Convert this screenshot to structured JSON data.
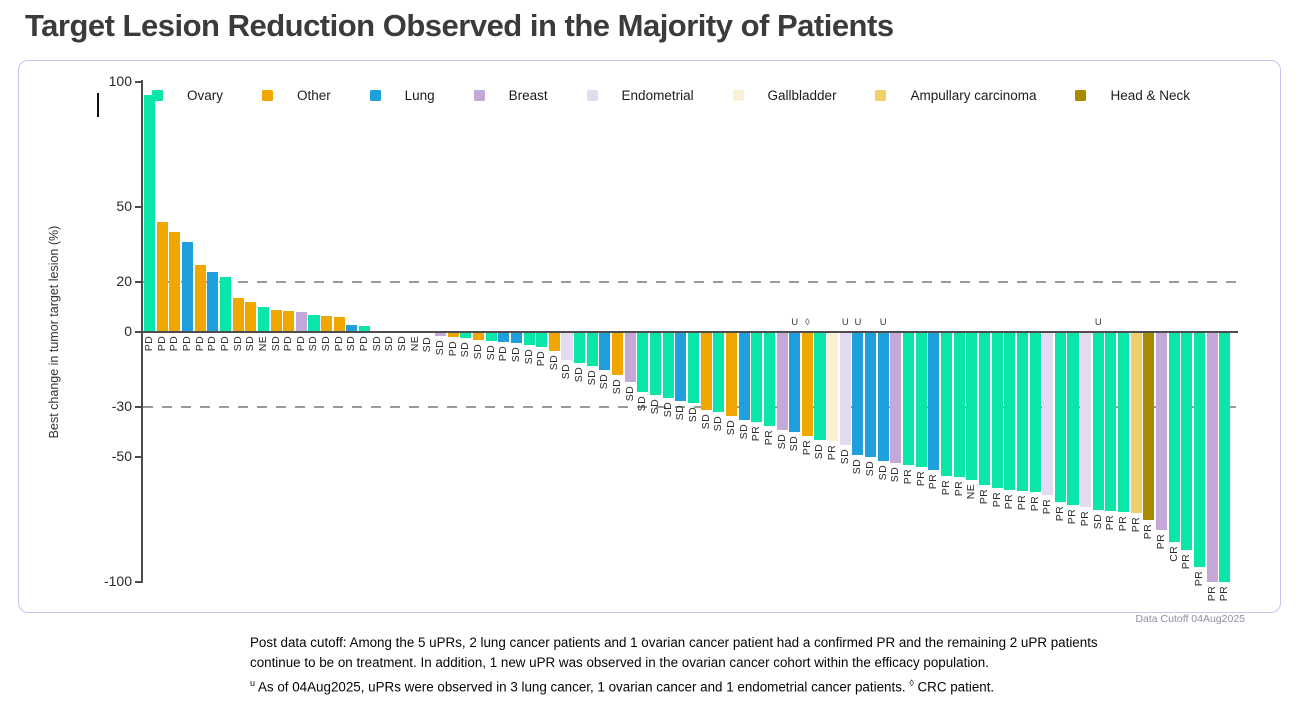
{
  "title": "Target Lesion Reduction Observed in the Majority of Patients",
  "data_cutoff": "Data Cutoff 04Aug2025",
  "footnote": {
    "line1": "Post data cutoff: Among the 5 uPRs, 2 lung cancer patients and 1 ovarian cancer patient had a confirmed PR and the remaining 2 uPR patients",
    "line2": "continue to be on treatment. In addition, 1 new uPR was observed in the ovarian cancer cohort within the efficacy population.",
    "line3_sup": "u",
    "line3_a": " As of 04Aug2025, uPRs were observed in 3 lung cancer, 1 ovarian cancer and 1 endometrial cancer patients. ",
    "line3_sym": "◊",
    "line3_b": " CRC patient."
  },
  "chart_data": {
    "type": "bar",
    "subtype": "waterfall",
    "title": "Target Lesion Reduction Observed in the Majority of Patients",
    "xlabel": "",
    "ylabel": "Best change in tumor target lesion (%)",
    "ylim": [
      -100,
      100
    ],
    "yticks": [
      100,
      50,
      20,
      0,
      -30,
      -50,
      -100
    ],
    "reference_lines": [
      20,
      -30
    ],
    "grid": false,
    "legend_position": "top",
    "palette": {
      "ov": "#0AE5AA",
      "ot": "#F0A800",
      "lu": "#1FA0DC",
      "br": "#C4A8D8",
      "en": "#E4DBF0",
      "gb": "#FAF0D4",
      "am": "#F0D068",
      "hn": "#A98900"
    },
    "legend": [
      {
        "label": "Ovary",
        "key": "ov"
      },
      {
        "label": "Other",
        "key": "ot"
      },
      {
        "label": "Lung",
        "key": "lu"
      },
      {
        "label": "Breast",
        "key": "br"
      },
      {
        "label": "Endometrial",
        "key": "en"
      },
      {
        "label": "Gallbladder",
        "key": "gb"
      },
      {
        "label": "Ampullary carcinoma",
        "key": "am"
      },
      {
        "label": "Head & Neck",
        "key": "hn"
      }
    ],
    "bars": {
      "values": [
        95,
        44,
        40,
        36,
        27,
        24,
        22,
        13.5,
        12,
        10,
        9,
        8.5,
        8,
        7,
        6.5,
        6,
        3,
        2.5,
        0,
        0,
        0,
        0,
        -0.5,
        -1.5,
        -2,
        -2.5,
        -3,
        -3.5,
        -4,
        -4.5,
        -5,
        -6,
        -7.5,
        -11,
        -12.5,
        -13.5,
        -15,
        -17,
        -20,
        -24,
        -25,
        -26.5,
        -27.5,
        -28.5,
        -31,
        -32,
        -33.5,
        -35,
        -36,
        -37.5,
        -39,
        -40,
        -41.5,
        -43,
        -43.5,
        -45,
        -49,
        -50,
        -51.5,
        -52.5,
        -53,
        -54,
        -55,
        -57.5,
        -58,
        -59,
        -61,
        -62.5,
        -63,
        -63.5,
        -64,
        -65,
        -68,
        -69,
        -70,
        -71,
        -71.5,
        -72,
        -72.5,
        -75,
        -79,
        -84,
        -87,
        -94,
        -100,
        -100
      ],
      "cats": [
        "ov",
        "ot",
        "ot",
        "lu",
        "ot",
        "lu",
        "ov",
        "ot",
        "ot",
        "ov",
        "ot",
        "ot",
        "br",
        "ov",
        "ot",
        "ot",
        "lu",
        "ov",
        "ov",
        "ov",
        "ot",
        "ov",
        "ov",
        "br",
        "ot",
        "ov",
        "ot",
        "ov",
        "lu",
        "lu",
        "ov",
        "ov",
        "ot",
        "en",
        "ov",
        "ov",
        "lu",
        "ot",
        "br",
        "ov",
        "ov",
        "ov",
        "lu",
        "ov",
        "ot",
        "ov",
        "ot",
        "lu",
        "ov",
        "ov",
        "br",
        "lu",
        "ot",
        "ov",
        "gb",
        "en",
        "lu",
        "lu",
        "lu",
        "br",
        "ov",
        "ov",
        "lu",
        "ov",
        "ov",
        "ov",
        "ov",
        "ov",
        "ov",
        "ov",
        "ov",
        "en",
        "ov",
        "ov",
        "en",
        "ov",
        "ov",
        "ov",
        "am",
        "hn",
        "br",
        "ov",
        "ov",
        "ov",
        "br",
        "ov"
      ],
      "labels": [
        "PD",
        "PD",
        "PD",
        "PD",
        "PD",
        "PD",
        "PD",
        "SD",
        "SD",
        "NE",
        "SD",
        "PD",
        "PD",
        "SD",
        "SD",
        "PD",
        "SD",
        "PD",
        "SD",
        "SD",
        "SD",
        "NE",
        "SD",
        "SD",
        "PD",
        "SD",
        "SD",
        "SD",
        "PD",
        "SD",
        "SD",
        "PD",
        "SD",
        "SD",
        "SD",
        "SD",
        "SD",
        "SD",
        "SD",
        "SD",
        "SD",
        "SD",
        "SD",
        "SD",
        "SD",
        "SD",
        "SD",
        "SD",
        "PR",
        "PR",
        "SD",
        "SD",
        "PR",
        "SD",
        "PR",
        "SD",
        "SD",
        "SD",
        "SD",
        "SD",
        "PR",
        "PR",
        "PR",
        "PR",
        "PR",
        "NE",
        "PR",
        "PR",
        "PR",
        "PR",
        "PR",
        "PR",
        "PR",
        "PR",
        "PR",
        "SD",
        "PR",
        "PR",
        "PR",
        "PR",
        "PR",
        "CR",
        "PR",
        "PR",
        "PR",
        "PR"
      ],
      "markers": {
        "51": "U",
        "52": "◊",
        "55": "U",
        "56": "U",
        "58": "U",
        "75": "U"
      }
    }
  }
}
